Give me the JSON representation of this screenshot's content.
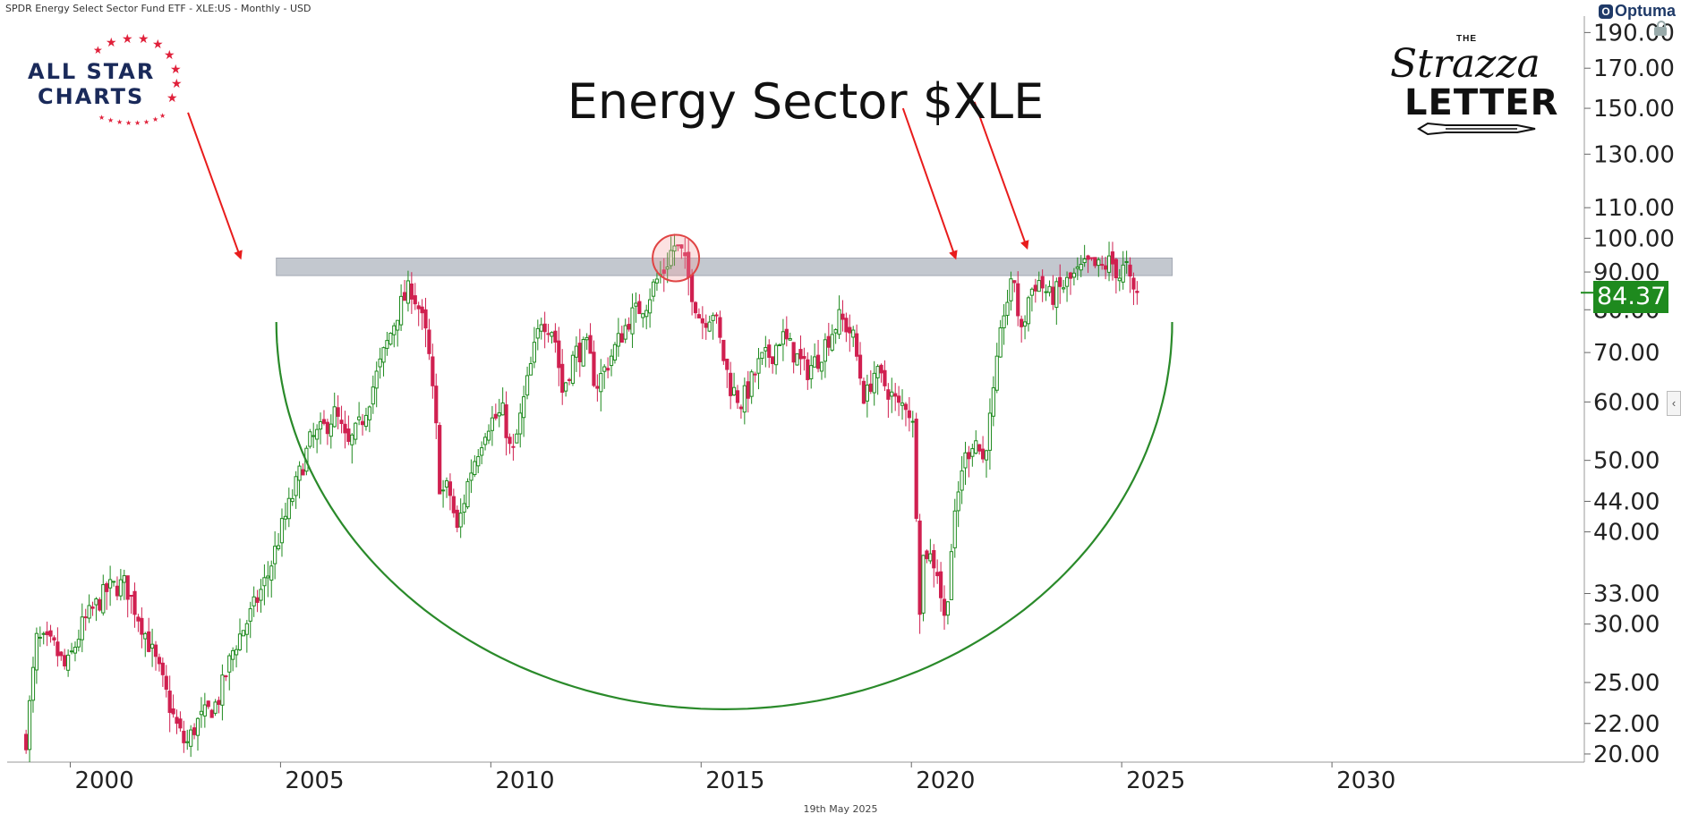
{
  "header_text": "SPDR Energy Select Sector Fund ETF - XLE:US - Monthly - USD",
  "footer_date": "19th May 2025",
  "brand": {
    "optuma": "Optuma",
    "allstar_line1": "ALL STAR",
    "allstar_line2": "CHARTS",
    "strazza_the": "THE",
    "strazza_line1": "Strazza",
    "strazza_line2": "LETTER"
  },
  "colors": {
    "up": "#1e8a1e",
    "down": "#d02050",
    "arc": "#2a8a2a",
    "band": "#b9bec7",
    "arrow": "#e81c1c",
    "circle": "#e04444",
    "last_price": "#1e8a1e"
  },
  "chart_data": {
    "type": "candlestick",
    "title": "Energy Sector $XLE",
    "frequency": "Monthly",
    "currency": "USD",
    "y_scale": "log",
    "xlim": [
      1998.5,
      2036.0
    ],
    "ylim": [
      19.5,
      200
    ],
    "x_ticks": [
      2000,
      2005,
      2010,
      2015,
      2020,
      2025,
      2030
    ],
    "x_tick_labels": [
      "2000",
      "2005",
      "2010",
      "2015",
      "2020",
      "2025",
      "2030"
    ],
    "y_ticks": [
      190,
      170,
      150,
      130,
      110,
      100,
      90,
      80,
      70,
      60,
      50,
      44,
      40,
      33,
      30,
      25,
      22,
      20
    ],
    "y_tick_labels": [
      "190.00",
      "170.00",
      "150.00",
      "130.00",
      "110.00",
      "100.00",
      "90.00",
      "80.00",
      "70.00",
      "60.00",
      "50.00",
      "44.00",
      "40.00",
      "33.00",
      "30.00",
      "25.00",
      "22.00",
      "20.00"
    ],
    "last_price": 84.37,
    "last_price_label": "84.37",
    "price_path": [
      [
        1998.95,
        21
      ],
      [
        1999.2,
        28.5
      ],
      [
        1999.6,
        28
      ],
      [
        1999.9,
        26
      ],
      [
        2000.3,
        30
      ],
      [
        2000.9,
        33.5
      ],
      [
        2001.3,
        34
      ],
      [
        2001.7,
        30
      ],
      [
        2002.1,
        26
      ],
      [
        2002.5,
        22
      ],
      [
        2002.75,
        20.5
      ],
      [
        2003.0,
        22
      ],
      [
        2003.5,
        23.5
      ],
      [
        2003.9,
        28
      ],
      [
        2004.3,
        31
      ],
      [
        2004.7,
        35
      ],
      [
        2005.0,
        40
      ],
      [
        2005.3,
        45
      ],
      [
        2005.7,
        53
      ],
      [
        2006.0,
        55
      ],
      [
        2006.3,
        58
      ],
      [
        2006.6,
        52
      ],
      [
        2006.9,
        56
      ],
      [
        2007.2,
        63
      ],
      [
        2007.5,
        71
      ],
      [
        2007.8,
        80
      ],
      [
        2008.1,
        86
      ],
      [
        2008.3,
        80
      ],
      [
        2008.5,
        72
      ],
      [
        2008.7,
        55
      ],
      [
        2008.8,
        45
      ],
      [
        2009.0,
        46
      ],
      [
        2009.2,
        40
      ],
      [
        2009.5,
        48
      ],
      [
        2009.9,
        56
      ],
      [
        2010.3,
        58
      ],
      [
        2010.5,
        50
      ],
      [
        2010.9,
        65
      ],
      [
        2011.2,
        78
      ],
      [
        2011.5,
        75
      ],
      [
        2011.7,
        62
      ],
      [
        2012.0,
        70
      ],
      [
        2012.3,
        71
      ],
      [
        2012.5,
        63
      ],
      [
        2012.9,
        70
      ],
      [
        2013.3,
        78
      ],
      [
        2013.7,
        82
      ],
      [
        2013.9,
        87
      ],
      [
        2014.1,
        90
      ],
      [
        2014.35,
        98
      ],
      [
        2014.55,
        95
      ],
      [
        2014.8,
        84
      ],
      [
        2015.0,
        77
      ],
      [
        2015.3,
        80
      ],
      [
        2015.5,
        70
      ],
      [
        2015.7,
        63
      ],
      [
        2015.95,
        60
      ],
      [
        2016.1,
        62
      ],
      [
        2016.4,
        68
      ],
      [
        2016.7,
        70
      ],
      [
        2016.9,
        74
      ],
      [
        2017.2,
        70
      ],
      [
        2017.5,
        66
      ],
      [
        2017.8,
        69
      ],
      [
        2018.0,
        73
      ],
      [
        2018.3,
        78
      ],
      [
        2018.6,
        74
      ],
      [
        2018.9,
        60
      ],
      [
        2019.1,
        66
      ],
      [
        2019.4,
        63
      ],
      [
        2019.7,
        59
      ],
      [
        2019.9,
        60
      ],
      [
        2020.05,
        55
      ],
      [
        2020.2,
        32
      ],
      [
        2020.3,
        38
      ],
      [
        2020.6,
        36
      ],
      [
        2020.8,
        30
      ],
      [
        2020.95,
        38
      ],
      [
        2021.2,
        49
      ],
      [
        2021.5,
        54
      ],
      [
        2021.7,
        50
      ],
      [
        2021.9,
        58
      ],
      [
        2022.2,
        80
      ],
      [
        2022.45,
        88
      ],
      [
        2022.6,
        73
      ],
      [
        2022.8,
        84
      ],
      [
        2023.0,
        88
      ],
      [
        2023.3,
        83
      ],
      [
        2023.6,
        86
      ],
      [
        2023.9,
        89
      ],
      [
        2024.2,
        92
      ],
      [
        2024.5,
        91
      ],
      [
        2024.75,
        93
      ],
      [
        2024.95,
        89
      ],
      [
        2025.1,
        92
      ],
      [
        2025.25,
        84
      ],
      [
        2025.38,
        84.37
      ]
    ],
    "annotations": {
      "resistance_band": {
        "x_start": 2004.9,
        "x_end": 2026.2,
        "y_low": 89,
        "y_high": 94
      },
      "arc": {
        "x_start": 2004.9,
        "x_end": 2026.2,
        "y_ends": 77,
        "x_bottom": 2015.55,
        "y_bottom": 23
      },
      "arrows": [
        {
          "from": [
            2002.8,
            148
          ],
          "to": [
            2004.05,
            94
          ]
        },
        {
          "from": [
            2019.8,
            150
          ],
          "to": [
            2021.05,
            94
          ]
        },
        {
          "from": [
            2021.5,
            153
          ],
          "to": [
            2022.75,
            97
          ]
        }
      ],
      "circle": {
        "x": 2014.4,
        "y": 94
      }
    }
  }
}
